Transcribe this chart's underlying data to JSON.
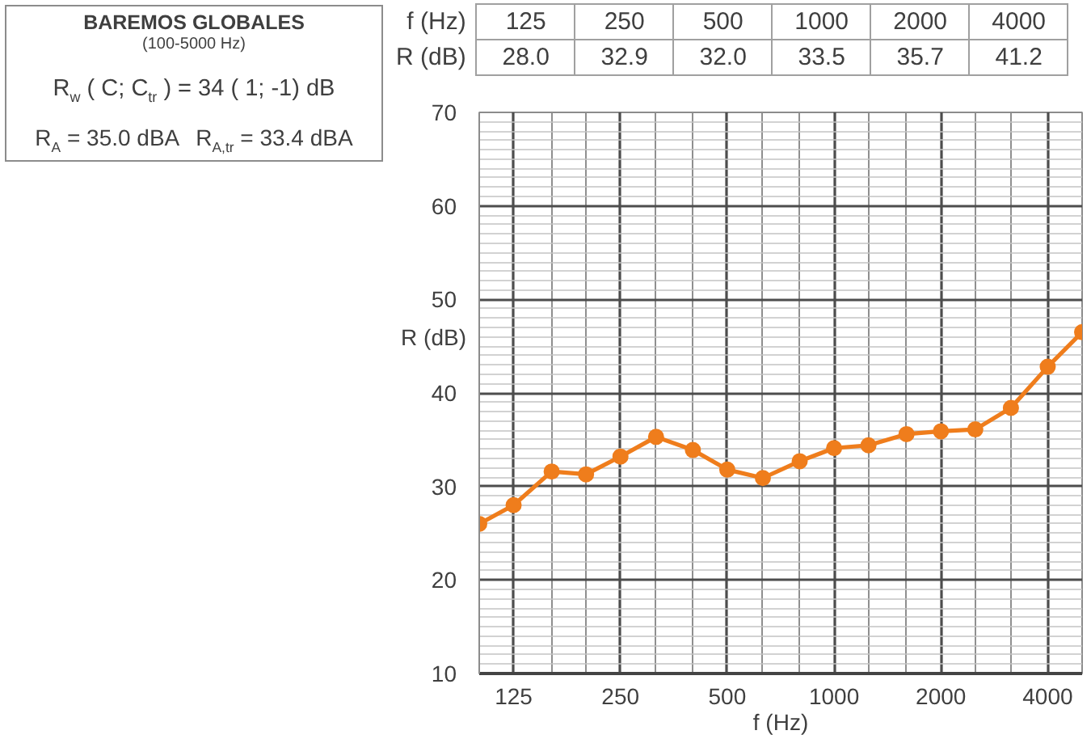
{
  "chart_data": [
    {
      "type": "other",
      "title": "BAREMOS GLOBALES",
      "subtitle": "(100-5000 Hz)",
      "annotations": [
        "R$_{w}$ ( C; C$_{tr}$ ) = 34 ( 1; -1) dB",
        "R$_{A}$ = 35.0 dBA",
        "R$_{A,tr}$ = 33.4 dBA"
      ]
    },
    {
      "type": "other",
      "xlabel": "f (Hz)",
      "ylabel": "R (dB)",
      "categories": [
        "125",
        "250",
        "500",
        "1000",
        "2000",
        "4000"
      ],
      "values": [
        28.0,
        32.9,
        32.0,
        33.5,
        35.7,
        41.2
      ],
      "value_labels": [
        "28.0",
        "32.9",
        "32.0",
        "33.5",
        "35.7",
        "41.2"
      ]
    },
    {
      "type": "line",
      "xlabel": "f (Hz)",
      "ylabel": "R (dB)",
      "x": [
        100,
        125,
        160,
        200,
        250,
        315,
        400,
        500,
        630,
        800,
        1000,
        1250,
        1600,
        2000,
        2500,
        3150,
        4000,
        5000
      ],
      "series": [
        {
          "color": "#ef7d1c",
          "values": [
            26.0,
            28.0,
            31.6,
            31.3,
            33.2,
            35.3,
            33.9,
            31.8,
            30.9,
            32.7,
            34.1,
            34.4,
            35.6,
            35.9,
            36.1,
            38.4,
            42.8,
            46.5
          ]
        }
      ],
      "log": "x",
      "xlim": [
        100,
        5000
      ],
      "xticks": [
        125,
        250,
        500,
        1000,
        2000,
        4000
      ],
      "ylim": [
        10,
        70
      ],
      "yticks": [
        10,
        20,
        30,
        40,
        50,
        60,
        70
      ],
      "grid": true,
      "marker": "circle"
    }
  ]
}
